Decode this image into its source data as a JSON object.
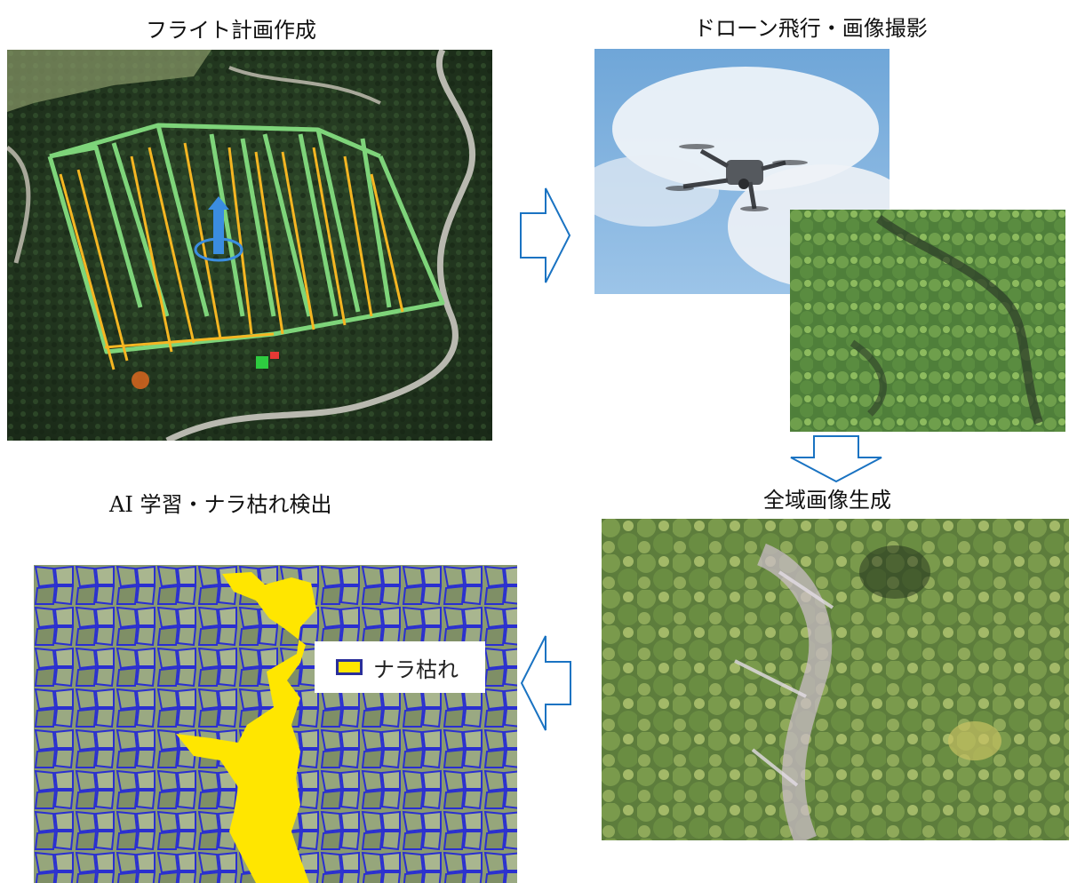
{
  "steps": {
    "flight_plan": {
      "title": "フライト計画作成"
    },
    "drone_capture": {
      "title": "ドローン飛行・画像撮影"
    },
    "orthomosaic": {
      "title": "全域画像生成"
    },
    "ai_detection": {
      "title": "AI 学習・ナラ枯れ検出"
    }
  },
  "legend": {
    "label": "ナラ枯れ"
  },
  "colors": {
    "flight_line": "#7ed47a",
    "waypoint_post": "#f5b622",
    "arrow_outline": "#1a73c2",
    "detection_fill": "#ffe600",
    "crown_outline": "#2a2fd0"
  },
  "icons": [
    "right-arrow-icon",
    "down-arrow-icon",
    "left-arrow-icon",
    "drone-icon"
  ]
}
